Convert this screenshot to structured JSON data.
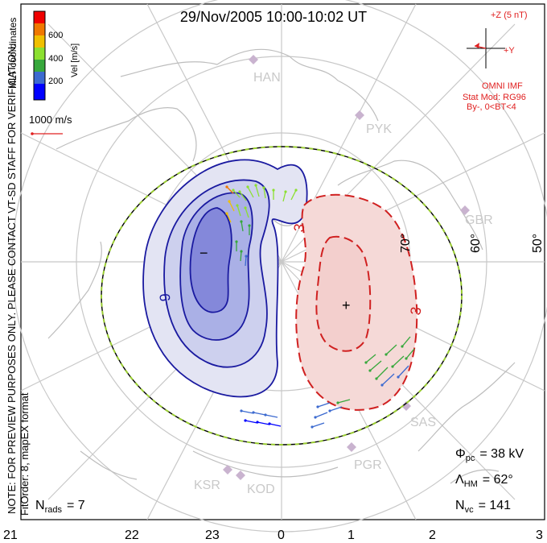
{
  "title": "29/Nov/2005 10:00-10:02 UT",
  "colorbar": {
    "label": "Vel [m/s]",
    "ticks": [
      "600",
      "400",
      "200"
    ],
    "colors": [
      "#0000ff",
      "#3c6ad0",
      "#37a83c",
      "#8ce030",
      "#f0c000",
      "#f07800",
      "#f00000"
    ],
    "coords_label": "MLT coordinates"
  },
  "scale_vector_label": "1000 m/s",
  "imf": {
    "z_label": "+Z (5 nT)",
    "y_label": "+Y",
    "source": "OMNI IMF",
    "model": "Stat Mod: RG96",
    "condition": "By-, 0<BT<4"
  },
  "side_note": "NOTE: FOR PREVIEW PURPOSES ONLY. PLEASE CONTACT VT-SD STAFF FOR VERIFICATION.",
  "fit_order": "FitOrder: 8, mapEX format",
  "stations": [
    "HAN",
    "PYK",
    "GBR",
    "SAS",
    "PGR",
    "KSR",
    "KOD"
  ],
  "latitude_labels": [
    "70°",
    "60°",
    "50°"
  ],
  "mlt_labels": [
    "21",
    "22",
    "23",
    "0",
    "1",
    "2",
    "3"
  ],
  "potential_labels": {
    "dusk_contour": "-9",
    "dawn_contour_top": "3",
    "dawn_contour_right": "3",
    "dusk_min": "−",
    "dawn_max": "+"
  },
  "stats": {
    "phi_symbol": "Φ",
    "phi_sub": "pc",
    "phi_value": "= 38 kV",
    "lambda_symbol": "Λ",
    "lambda_sub": "HM",
    "lambda_value": "= 62°",
    "nvc_symbol": "N",
    "nvc_sub": "vc",
    "nvc_value": "= 141",
    "nrads_symbol": "N",
    "nrads_sub": "rads",
    "nrads_value": "= 7"
  },
  "colors": {
    "dusk_cell": "#1a1aa0",
    "dawn_cell": "#d02020",
    "grid": "#c8c8c8",
    "hm_boundary": "#9acd32"
  }
}
